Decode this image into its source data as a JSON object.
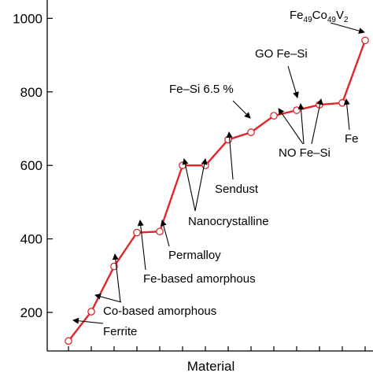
{
  "chart_data": {
    "type": "line",
    "xlabel": "Material",
    "ylabel": "",
    "ylim": [
      95,
      1050
    ],
    "yticks": [
      200,
      400,
      600,
      800,
      1000
    ],
    "grid": false,
    "line_color": "#e0262a",
    "marker_color": "#e0262a",
    "series": [
      {
        "values": [
          122,
          202,
          325,
          417,
          420,
          600,
          600,
          670,
          690,
          735,
          750,
          765,
          770,
          940
        ]
      }
    ],
    "annotations": {
      "ferrite": "Ferrite",
      "co_amorphous": "Co-based amorphous",
      "fe_amorphous": "Fe-based amorphous",
      "permalloy": "Permalloy",
      "nanocrystalline": "Nanocrystalline",
      "sendust": "Sendust",
      "fesi65": "Fe–Si 6.5 %",
      "go_fesi": "GO Fe–Si",
      "no_fesi": "NO Fe–Si",
      "fe": "Fe",
      "fecov": {
        "base": "Fe",
        "sub1": "49",
        "mid": "Co",
        "sub2": "49",
        "end": "V",
        "sub3": "2"
      }
    }
  }
}
